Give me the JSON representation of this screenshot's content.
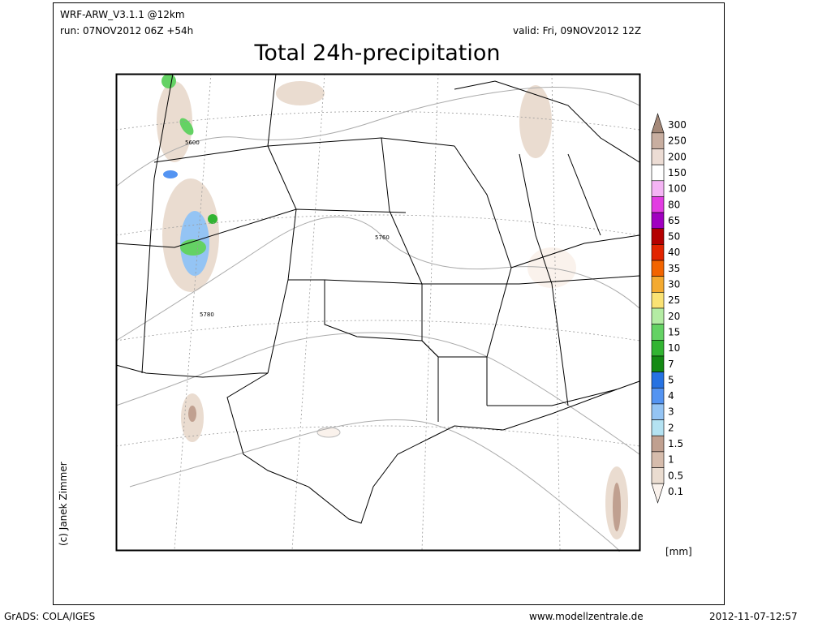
{
  "header": {
    "model": "WRF-ARW_V3.1.1 @12km",
    "run": "run: 07NOV2012 06Z +54h",
    "valid": "valid: Fri, 09NOV2012 12Z",
    "title": "Total 24h-precipitation"
  },
  "map": {
    "contour_labels": [
      "5600",
      "5760",
      "5780"
    ]
  },
  "legend": {
    "unit": "[mm]",
    "items": [
      {
        "label": "300",
        "color": "#a48878"
      },
      {
        "label": "250",
        "color": "#c8aea0"
      },
      {
        "label": "200",
        "color": "#ecdcd4"
      },
      {
        "label": "150",
        "color": "#ffffff"
      },
      {
        "label": "100",
        "color": "#f4b4f4"
      },
      {
        "label": "80",
        "color": "#e23ce2"
      },
      {
        "label": "65",
        "color": "#a000c0"
      },
      {
        "label": "50",
        "color": "#b40000"
      },
      {
        "label": "40",
        "color": "#e22400"
      },
      {
        "label": "35",
        "color": "#f26400"
      },
      {
        "label": "30",
        "color": "#f4aa30"
      },
      {
        "label": "25",
        "color": "#fae274"
      },
      {
        "label": "20",
        "color": "#b4eca4"
      },
      {
        "label": "15",
        "color": "#64d264"
      },
      {
        "label": "10",
        "color": "#32b432"
      },
      {
        "label": "7",
        "color": "#148a14"
      },
      {
        "label": "5",
        "color": "#2672e2"
      },
      {
        "label": "4",
        "color": "#5494f2"
      },
      {
        "label": "3",
        "color": "#94c4f4"
      },
      {
        "label": "2",
        "color": "#b4e2f2"
      },
      {
        "label": "1.5",
        "color": "#c0a090"
      },
      {
        "label": "1",
        "color": "#d6bcac"
      },
      {
        "label": "0.5",
        "color": "#eadcd0"
      },
      {
        "label": "0.1",
        "color": "#faf2ec"
      }
    ]
  },
  "credit": "(c) Janek Zimmer",
  "footer": {
    "left": "GrADS: COLA/IGES",
    "center": "www.modellzentrale.de",
    "right": "2012-11-07-12:57"
  }
}
